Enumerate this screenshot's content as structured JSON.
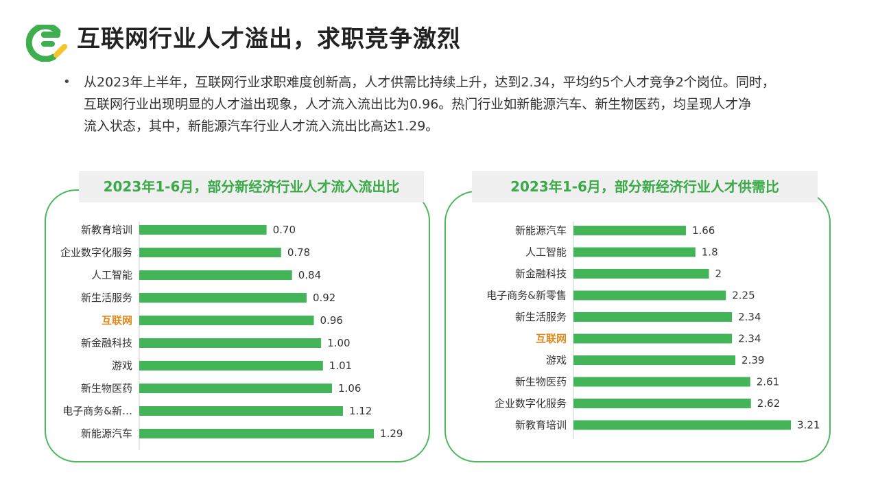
{
  "header": {
    "title": "互联网行业人才溢出，求职竞争激烈",
    "bullet_lines": [
      "从2023年上半年，互联网行业求职难度创新高，人才供需比持续上升，达到2.34，平均约5个人才竞争2个岗位。同时，",
      "互联网行业出现明显的人才溢出现象，人才流入流出比为0.96。热门行业如新能源汽车、新生物医药，均呈现人才净",
      "流入状态，其中，新能源汽车行业人才流入流出比高达1.29。"
    ]
  },
  "colors": {
    "bar": "#44b459",
    "accent": "#3aaa48",
    "highlight": "#e08a1e",
    "logo_yellow": "#f6c529"
  },
  "chart_data": [
    {
      "type": "bar",
      "orientation": "horizontal",
      "title": "2023年1-6月，部分新经济行业人才流入流出比",
      "categories": [
        "新教育培训",
        "企业数字化服务",
        "人工智能",
        "新生活服务",
        "互联网",
        "新金融科技",
        "游戏",
        "新生物医药",
        "电子商务&新…",
        "新能源汽车"
      ],
      "values": [
        0.7,
        0.78,
        0.84,
        0.92,
        0.96,
        1.0,
        1.01,
        1.06,
        1.12,
        1.29
      ],
      "value_labels": [
        "0.70",
        "0.78",
        "0.84",
        "0.92",
        "0.96",
        "1.00",
        "1.01",
        "1.06",
        "1.12",
        "1.29"
      ],
      "highlight": "互联网",
      "xlim": [
        0,
        1.32
      ]
    },
    {
      "type": "bar",
      "orientation": "horizontal",
      "title": "2023年1-6月，部分新经济行业人才供需比",
      "categories": [
        "新能源汽车",
        "人工智能",
        "新金融科技",
        "电子商务&新零售",
        "新生活服务",
        "互联网",
        "游戏",
        "新生物医药",
        "企业数字化服务",
        "新教育培训"
      ],
      "values": [
        1.66,
        1.8,
        2,
        2.25,
        2.34,
        2.34,
        2.39,
        2.61,
        2.62,
        3.21
      ],
      "value_labels": [
        "1.66",
        "1.8",
        "2",
        "2.25",
        "2.34",
        "2.34",
        "2.39",
        "2.61",
        "2.62",
        "3.21"
      ],
      "highlight": "互联网",
      "xlim": [
        0,
        3.24
      ]
    }
  ]
}
